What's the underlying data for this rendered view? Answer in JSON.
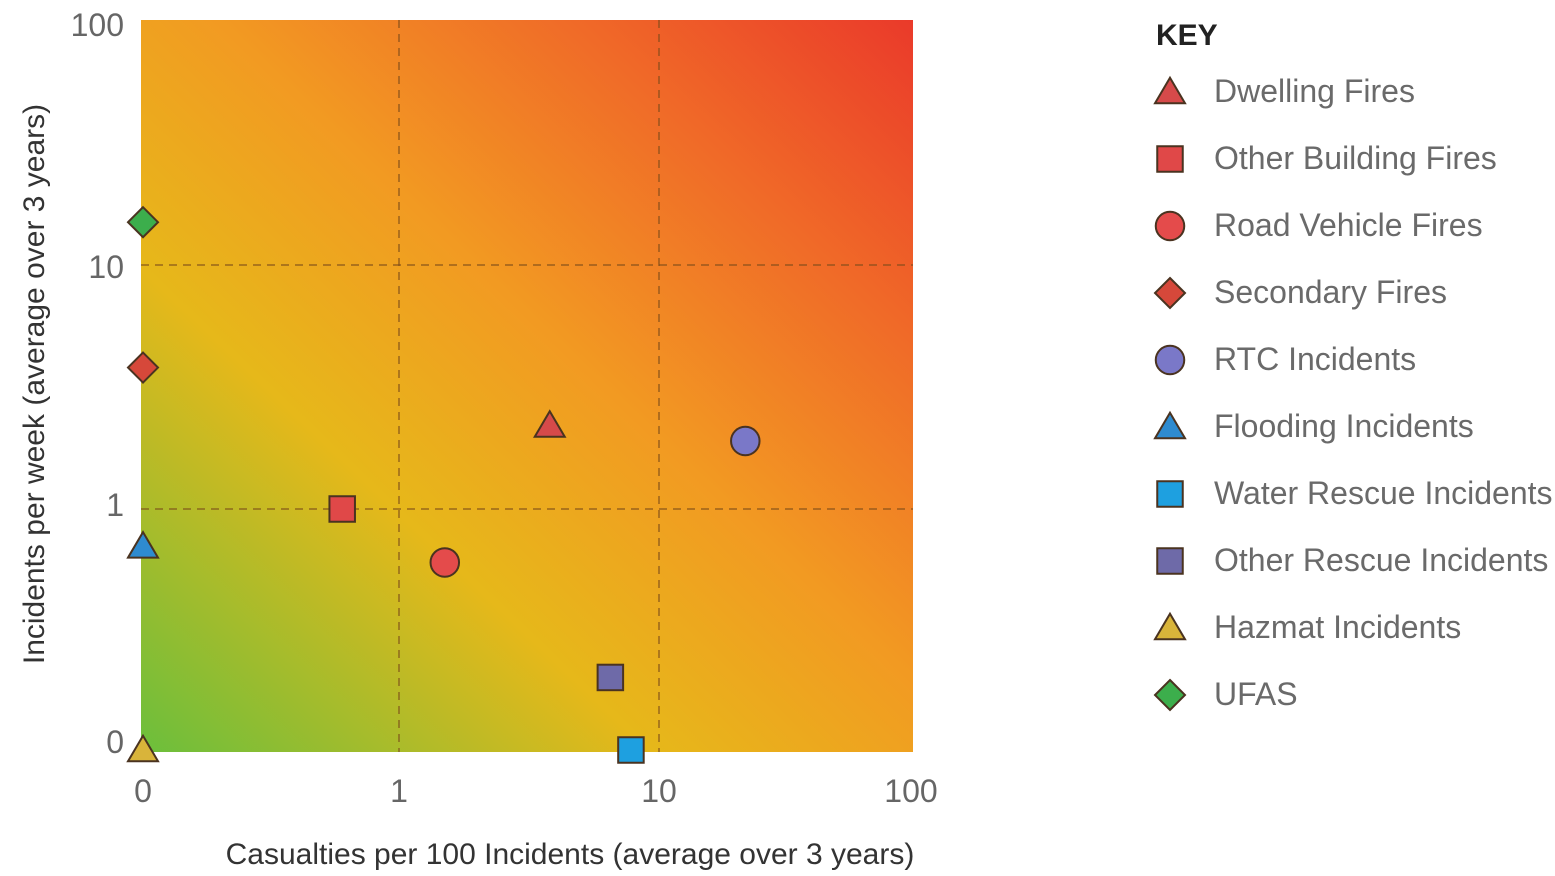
{
  "chart_data": {
    "type": "scatter",
    "xlabel": "Casualties per 100 Incidents (average over 3 years)",
    "ylabel": "Incidents per week (average over 3 years)",
    "xscale": "log",
    "yscale": "log",
    "xlim": [
      0,
      100
    ],
    "ylim": [
      0,
      100
    ],
    "x_ticks": [
      "0",
      "1",
      "10",
      "100"
    ],
    "y_ticks": [
      "0",
      "1",
      "10",
      "100"
    ],
    "grid": true,
    "background": "heat gradient from green (bottom-left) through yellow/orange to red (top-right)",
    "legend_title": "KEY",
    "legend_position": "right",
    "series": [
      {
        "name": "Dwelling Fires",
        "marker": "triangle",
        "color": "#d64a4a",
        "x": 3.8,
        "y": 2.2
      },
      {
        "name": "Other Building Fires",
        "marker": "square",
        "color": "#e04848",
        "x": 0.6,
        "y": 1.0
      },
      {
        "name": "Road Vehicle Fires",
        "marker": "circle",
        "color": "#e44b4b",
        "x": 1.5,
        "y": 0.6
      },
      {
        "name": "Secondary Fires",
        "marker": "diamond",
        "color": "#d6483a",
        "x": 0,
        "y": 3.8
      },
      {
        "name": "RTC Incidents",
        "marker": "circle",
        "color": "#7a78c8",
        "x": 22,
        "y": 1.9
      },
      {
        "name": "Flooding Incidents",
        "marker": "triangle",
        "color": "#2e8bd0",
        "x": 0,
        "y": 0.7
      },
      {
        "name": "Water Rescue Incidents",
        "marker": "square",
        "color": "#1ea0e0",
        "x": 7.8,
        "y": 0
      },
      {
        "name": "Other Rescue Incidents",
        "marker": "square",
        "color": "#6e6aa8",
        "x": 6.5,
        "y": 0.2
      },
      {
        "name": "Hazmat Incidents",
        "marker": "triangle",
        "color": "#d9b43a",
        "x": 0,
        "y": 0
      },
      {
        "name": "UFAS",
        "marker": "diamond",
        "color": "#3cae4c",
        "x": 0,
        "y": 15
      }
    ]
  }
}
